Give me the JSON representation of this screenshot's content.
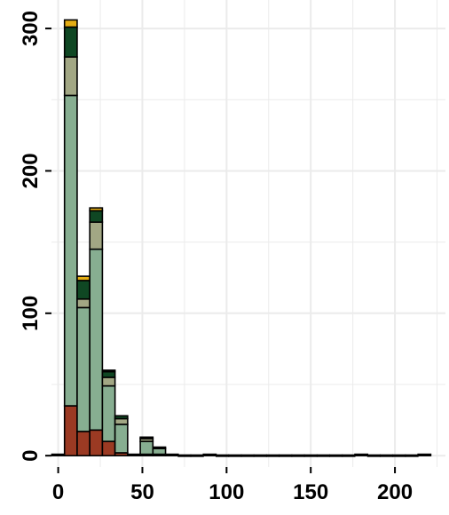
{
  "chart_data": {
    "type": "bar",
    "stacked": true,
    "binwidth": 7.5,
    "x_bin_centers": [
      0,
      7.5,
      15,
      22.5,
      30,
      37.5,
      45,
      52.5,
      60,
      67.5,
      75,
      82.5,
      90,
      97.5,
      105,
      112.5,
      120,
      127.5,
      135,
      142.5,
      150,
      157.5,
      165,
      172.5,
      180,
      187.5,
      195,
      202.5,
      210,
      217.5
    ],
    "series": [
      {
        "values": [
          0,
          35,
          17,
          18,
          10,
          2,
          0,
          1,
          1,
          0,
          0,
          0,
          0,
          0,
          0,
          0,
          0,
          0,
          0,
          0,
          0,
          0,
          0,
          0,
          0,
          0,
          0,
          0,
          0,
          0
        ],
        "color": "#9b3a23"
      },
      {
        "values": [
          1,
          218,
          87,
          127,
          39,
          20,
          1,
          9,
          4,
          1,
          0,
          0,
          1,
          0,
          0,
          0,
          0,
          0,
          0,
          0,
          0,
          0,
          0,
          0,
          1,
          0,
          0,
          0,
          0,
          1
        ],
        "color": "#87ae91"
      },
      {
        "values": [
          0,
          27,
          6,
          19,
          6,
          4,
          0,
          2,
          1,
          0,
          0,
          0,
          0,
          0,
          0,
          0,
          0,
          0,
          0,
          0,
          0,
          0,
          0,
          0,
          0,
          0,
          0,
          0,
          0,
          0
        ],
        "color": "#a2a784"
      },
      {
        "values": [
          0,
          21,
          13,
          8,
          4,
          2,
          0,
          1,
          0,
          0,
          0,
          0,
          0,
          0,
          0,
          0,
          0,
          0,
          0,
          0,
          0,
          0,
          0,
          0,
          0,
          0,
          0,
          0,
          0,
          0
        ],
        "color": "#0f4723"
      },
      {
        "values": [
          0,
          5,
          3,
          2,
          1,
          0,
          0,
          0,
          0,
          0,
          0,
          0,
          0,
          0,
          0,
          0,
          0,
          0,
          0,
          0,
          0,
          0,
          0,
          0,
          0,
          0,
          0,
          0,
          0,
          0
        ],
        "color": "#e4ad13"
      }
    ],
    "x_ticks": [
      0,
      50,
      100,
      150,
      200
    ],
    "x_tick_labels": [
      "0",
      "50",
      "100",
      "150",
      "200"
    ],
    "y_ticks": [
      0,
      100,
      200,
      300
    ],
    "y_tick_labels": [
      "0",
      "100",
      "200",
      "300"
    ],
    "xlim": [
      -4,
      230
    ],
    "ylim": [
      -8,
      320
    ],
    "title": "",
    "xlabel": "",
    "ylabel": "",
    "grid": true,
    "legend": "none",
    "colors": {
      "background": "#ffffff",
      "grid": "#ebebeb",
      "bar_outline": "#000000",
      "axis": "#000000"
    }
  }
}
